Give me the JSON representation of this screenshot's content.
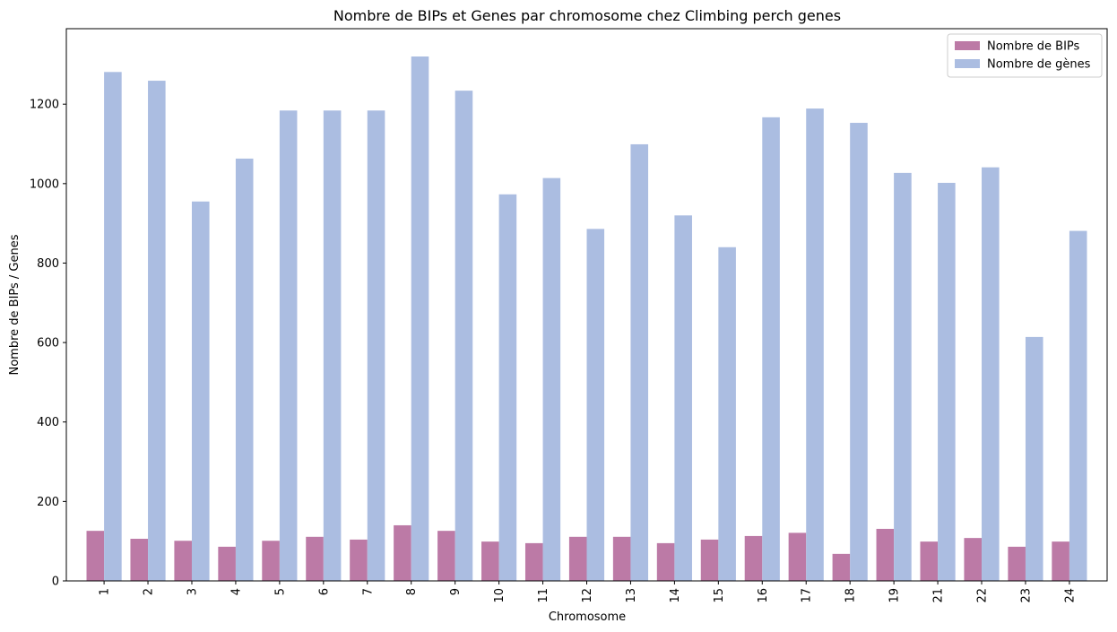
{
  "chart_data": {
    "type": "bar",
    "title": "Nombre de BIPs et Genes par chromosome chez Climbing perch genes",
    "xlabel": "Chromosome",
    "ylabel": "Nombre de BIPs / Genes",
    "ylim": [
      0,
      1390
    ],
    "yticks": [
      0,
      200,
      400,
      600,
      800,
      1000,
      1200
    ],
    "categories": [
      "1",
      "2",
      "3",
      "4",
      "5",
      "6",
      "7",
      "8",
      "9",
      "10",
      "11",
      "12",
      "13",
      "14",
      "15",
      "16",
      "17",
      "18",
      "19",
      "21",
      "22",
      "23",
      "24"
    ],
    "series": [
      {
        "name": "Nombre de BIPs",
        "color": "#bc7aa6",
        "values": [
          126,
          106,
          101,
          86,
          101,
          111,
          104,
          140,
          126,
          99,
          95,
          111,
          111,
          95,
          104,
          113,
          121,
          68,
          131,
          99,
          108,
          86,
          99
        ]
      },
      {
        "name": "Nombre de gènes",
        "color": "#abbde1",
        "values": [
          1281,
          1259,
          955,
          1063,
          1184,
          1184,
          1184,
          1320,
          1234,
          973,
          1014,
          886,
          1099,
          920,
          840,
          1167,
          1189,
          1153,
          1027,
          1002,
          1041,
          614,
          881
        ]
      }
    ],
    "legend_position": "top-right",
    "grid": false
  }
}
